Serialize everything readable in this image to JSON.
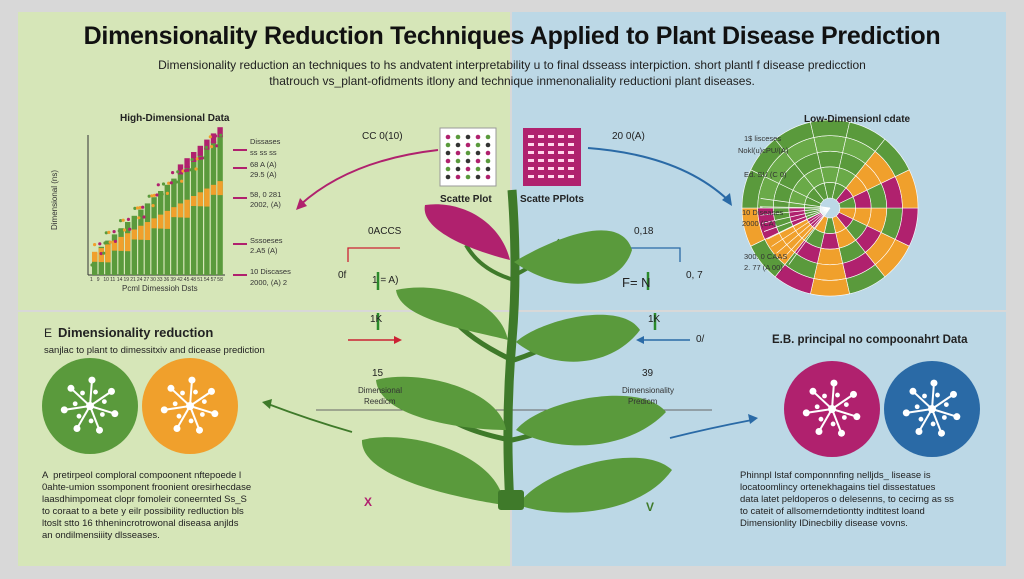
{
  "title": "Dimensionality Reduction Techniques Applied to Plant Disease Prediction",
  "subtitle_line1": "Dimensionality reduction an techniques to hs andvatent interpretability u to final dsseass interpiction. short plantl f disease predicction",
  "subtitle_line2": "thatrouch vs_plant-ofidments itlony and technique inmenonaliality reductioni plant diseases.",
  "high_dim": {
    "title": "High-Dimensional Data",
    "ylabel": "Dimensional (ns)",
    "xlabel": "Pcml Dimessioh Dsts",
    "tick_labels": [
      "1",
      "9",
      "10",
      "11",
      "14",
      "19",
      "21",
      "24",
      "27",
      "30",
      "33",
      "36",
      "39",
      "42",
      "45",
      "48",
      "51",
      "54",
      "57",
      "58"
    ],
    "legend": [
      "Dissases",
      "ss ss ss",
      "68 A (A)",
      "29.5 (A)",
      "58, 0 281",
      "2002, (A)",
      "Sssoeses",
      "2.A5 (A)",
      "10 Discases",
      "2000, (A) 2"
    ]
  },
  "center": {
    "arrow_label": "CC 0(10)",
    "right_arrow_label": "20 0(A)",
    "scatter_left": "Scatte Plot",
    "scatter_right": "Scatte PPlots",
    "oaccs": "0ACCS",
    "val_right": "0,18",
    "eq_left": "1 = A)",
    "eq_right": "F= N",
    "left_mark": "0f",
    "right_mark": "0, 7",
    "bar_left": "1K",
    "bar_right": "1K",
    "dim_left_num": "15",
    "dim_left_label": "Dimensional",
    "dim_left_label2": "Reedicm",
    "dim_right_num": "39",
    "dim_right_label": "Dimensionality",
    "dim_right_label2": "Predicm",
    "right_zero": "0/",
    "x_label": "X",
    "v_label": "V"
  },
  "low_dim": {
    "title": "Low-Dimensionl cdate",
    "labels": [
      "1$ lisceses",
      "Nokl(u)cPU/(A)",
      "Ed. SU (C 0)",
      "10 Diseases",
      "2000 (CA)",
      "300. 0 CAAS",
      "2. 77 (A 00)"
    ]
  },
  "left_bottom": {
    "heading": "Dimensionality reduction",
    "heading_prefix": "E",
    "subheading": "sanjlac to plant to dimessitxiv and dicease prediction",
    "para": "A  pretirpeol comploral compoonent nftepoede l\n0ahte-umion ssomponent froonient oresirhecdase\nlaasdhimpomeat clopr fomoleir coneernted Ss_S\nto coraat to a bete y eilr possibility redluction bls\nltoslt stto 16 thhenincrotrowonal diseasa anjlds\nan ondilmensiiity dlsseases."
  },
  "right_bottom": {
    "heading": "E.B. principal no compoonahrt Data",
    "para": "Phinnpl lstaf componnnfing nelljds_ lisease is\nlocatoomlincy ortenekhagains tiel dissestatues\ndata latet peldoperos o delesenns, to cecirng as ss\nto cateit of allsomerndetiontty indtitest loand\nDimensionlity IDinecbiliy disease vovns."
  },
  "colors": {
    "green": "#5a9a3c",
    "green_dark": "#3f7a2a",
    "magenta": "#b0216e",
    "orange": "#f0a02c",
    "blue": "#2a6aa6",
    "left_bg": "#d6e6b8",
    "right_bg": "#bcd8e6"
  }
}
